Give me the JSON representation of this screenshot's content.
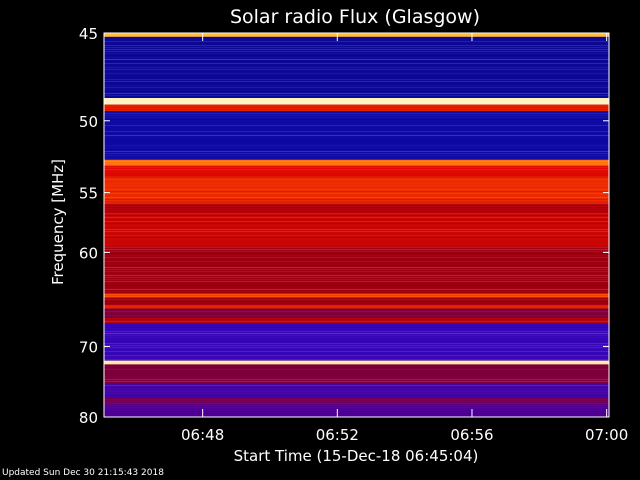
{
  "chart_data": {
    "type": "heatmap",
    "title": "Solar radio Flux (Glasgow)",
    "xlabel": "Start Time (15-Dec-18 06:45:04)",
    "ylabel": "Frequency [MHz]",
    "x_ticks": [
      "06:48",
      "06:52",
      "06:56",
      "07:00"
    ],
    "x_tick_minutes": [
      2.93,
      6.93,
      10.93,
      14.93
    ],
    "x_range_minutes": [
      0,
      15
    ],
    "y_ticks": [
      45,
      50,
      55,
      60,
      70,
      80
    ],
    "y_range": [
      45,
      80
    ],
    "y_scale": "reciprocal",
    "colormap": "blue-red-yellow-white",
    "bands": [
      {
        "from": 45.0,
        "to": 45.2,
        "level": 0.85
      },
      {
        "from": 45.2,
        "to": 48.6,
        "level": 0.05
      },
      {
        "from": 48.6,
        "to": 49.0,
        "level": 0.97
      },
      {
        "from": 49.0,
        "to": 49.4,
        "level": 0.6
      },
      {
        "from": 49.4,
        "to": 52.6,
        "level": 0.06
      },
      {
        "from": 52.6,
        "to": 53.0,
        "level": 0.75
      },
      {
        "from": 53.0,
        "to": 53.8,
        "level": 0.55
      },
      {
        "from": 53.8,
        "to": 55.8,
        "level": 0.62
      },
      {
        "from": 55.8,
        "to": 56.6,
        "level": 0.45
      },
      {
        "from": 56.6,
        "to": 59.5,
        "level": 0.5
      },
      {
        "from": 59.5,
        "to": 64.0,
        "level": 0.4
      },
      {
        "from": 64.0,
        "to": 64.4,
        "level": 0.7
      },
      {
        "from": 64.4,
        "to": 65.2,
        "level": 0.4
      },
      {
        "from": 65.2,
        "to": 65.6,
        "level": 0.6
      },
      {
        "from": 65.6,
        "to": 66.6,
        "level": 0.33
      },
      {
        "from": 66.6,
        "to": 67.2,
        "level": 0.45
      },
      {
        "from": 67.2,
        "to": 71.8,
        "level": 0.18
      },
      {
        "from": 71.8,
        "to": 72.3,
        "level": 0.95
      },
      {
        "from": 72.3,
        "to": 75.0,
        "level": 0.33
      },
      {
        "from": 75.0,
        "to": 77.0,
        "level": 0.2
      },
      {
        "from": 77.0,
        "to": 78.0,
        "level": 0.3
      },
      {
        "from": 78.0,
        "to": 80.0,
        "level": 0.22
      }
    ]
  },
  "footer": "Updated Sun Dec 30 21:15:43 2018"
}
